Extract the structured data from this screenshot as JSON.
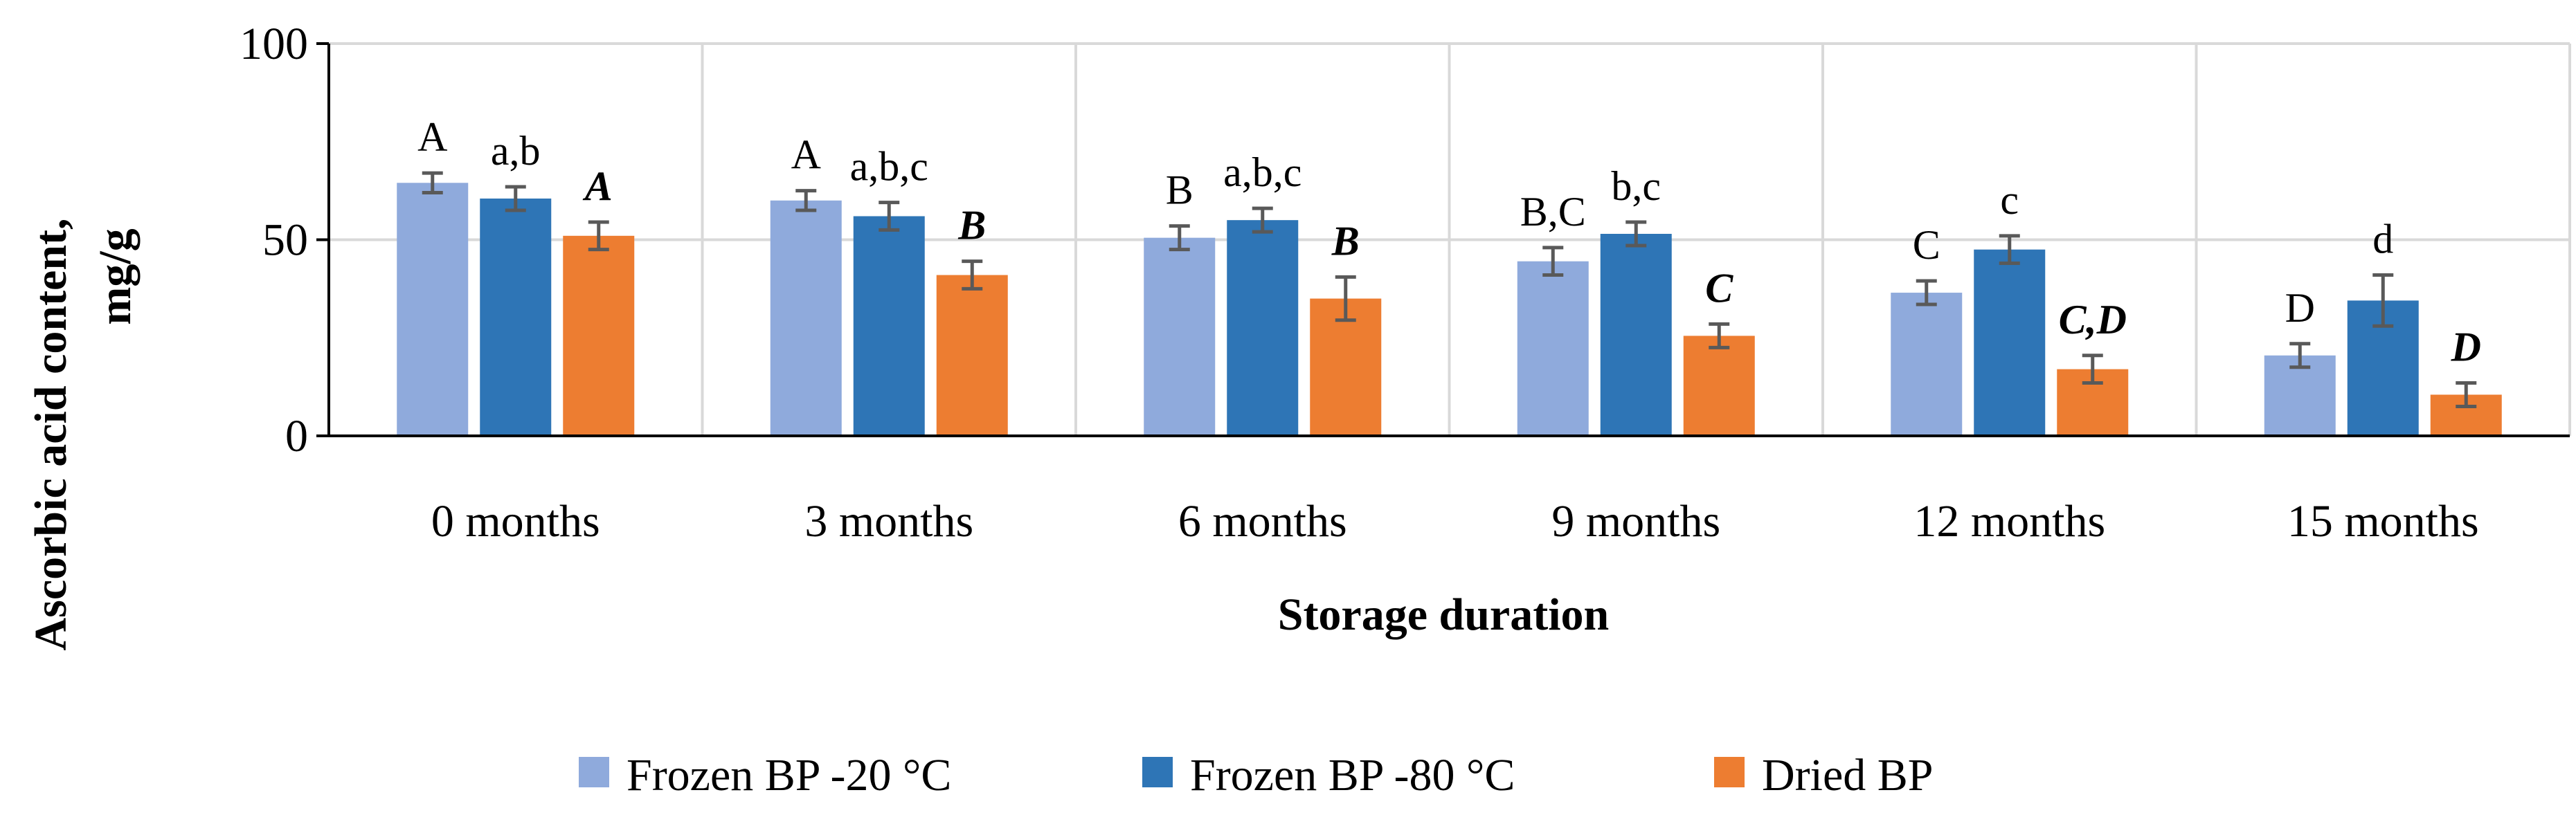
{
  "chart_data": {
    "type": "bar",
    "title": "",
    "xlabel": "Storage duration",
    "ylabel_line1": "Ascorbic acid content,",
    "ylabel_line2": "mg/g",
    "ylim": [
      0,
      100
    ],
    "yticks": [
      0,
      50,
      100
    ],
    "grid": true,
    "legend_position": "bottom",
    "categories": [
      "0 months",
      "3 months",
      "6 months",
      "9 months",
      "12 months",
      "15 months"
    ],
    "series": [
      {
        "name": "Frozen BP -20 °C",
        "color": "#8FAADC",
        "values": [
          64.5,
          60,
          50.5,
          44.5,
          36.5,
          20.5
        ],
        "errors": [
          2.5,
          2.5,
          3,
          3.5,
          3,
          3
        ],
        "labels": [
          "A",
          "A",
          "B",
          "B,C",
          "C",
          "D"
        ],
        "label_style": "normal"
      },
      {
        "name": "Frozen BP -80 °C",
        "color": "#2E75B6",
        "values": [
          60.5,
          56,
          55,
          51.5,
          47.5,
          34.5
        ],
        "errors": [
          3,
          3.5,
          3,
          3,
          3.5,
          6.5
        ],
        "labels": [
          "a,b",
          "a,b,c",
          "a,b,c",
          "b,c",
          "c",
          "d"
        ],
        "label_style": "normal"
      },
      {
        "name": "Dried BP",
        "color": "#ED7D31",
        "values": [
          51,
          41,
          35,
          25.5,
          17,
          10.5
        ],
        "errors": [
          3.5,
          3.5,
          5.5,
          3,
          3.5,
          3
        ],
        "labels": [
          "A",
          "B",
          "B",
          "C",
          "C,D",
          "D"
        ],
        "label_style": "bold-italic"
      }
    ]
  }
}
